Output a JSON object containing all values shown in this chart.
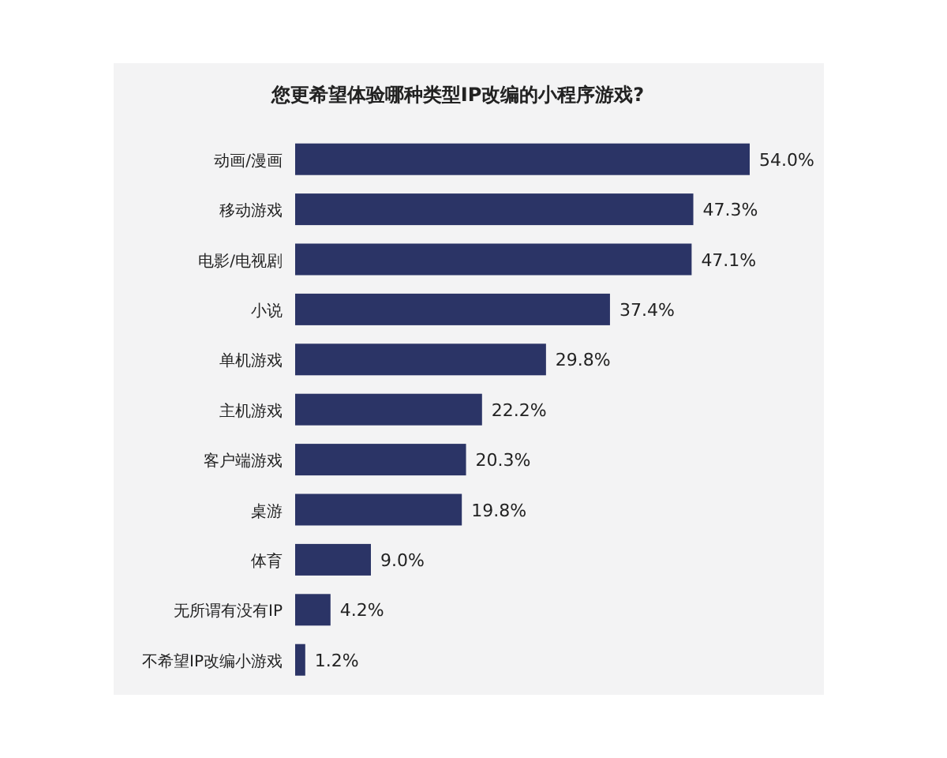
{
  "chart_data": {
    "type": "bar",
    "orientation": "horizontal",
    "title": "您更希望体验哪种类型IP改编的小程序游戏?",
    "categories": [
      "动画/漫画",
      "移动游戏",
      "电影/电视剧",
      "小说",
      "单机游戏",
      "主机游戏",
      "客户端游戏",
      "桌游",
      "体育",
      "无所谓有没有IP",
      "不希望IP改编小游戏"
    ],
    "values": [
      54.0,
      47.3,
      47.1,
      37.4,
      29.8,
      22.2,
      20.3,
      19.8,
      9.0,
      4.2,
      1.2
    ],
    "value_labels": [
      "54.0%",
      "47.3%",
      "47.1%",
      "37.4%",
      "29.8%",
      "22.2%",
      "20.3%",
      "19.8%",
      "9.0%",
      "4.2%",
      "1.2%"
    ],
    "color": "#2b3466"
  }
}
